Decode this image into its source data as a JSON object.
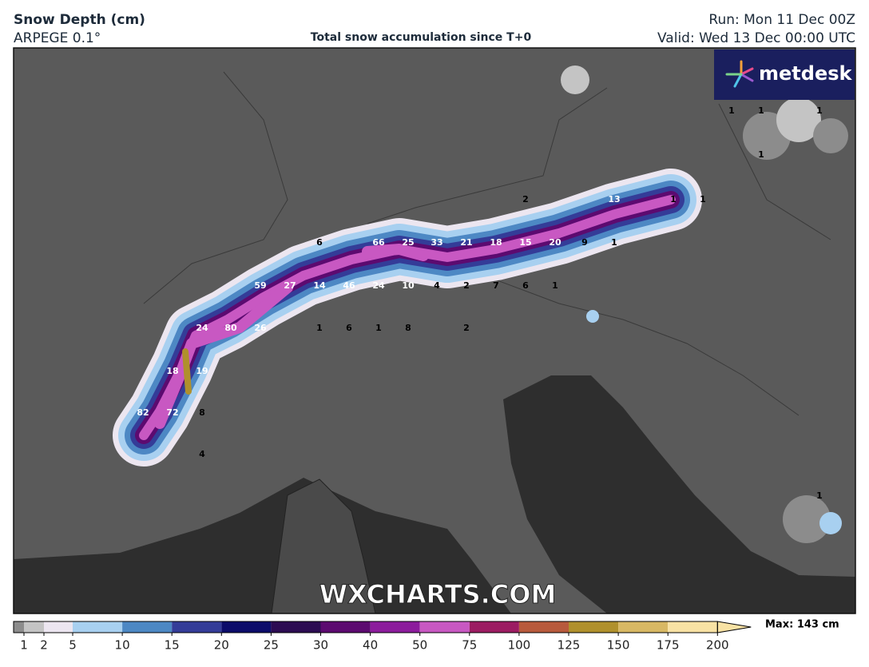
{
  "header": {
    "title": "Snow Depth (cm)",
    "model": "ARPEGE 0.1°",
    "subtitle": "Total snow accumulation since T+0",
    "run": "Run: Mon 11 Dec 00Z",
    "valid": "Valid: Wed 13 Dec 00:00 UTC"
  },
  "logo": "metdesk",
  "watermark": "WXCHARTS.COM",
  "legend": {
    "ticks": [
      1,
      2,
      5,
      10,
      15,
      20,
      25,
      30,
      40,
      50,
      75,
      100,
      125,
      150,
      175,
      200
    ],
    "below_color": "#8c8c8c",
    "colors": [
      "#c4c4c4",
      "#ece6f0",
      "#a8d0f0",
      "#4d88c4",
      "#343c98",
      "#0c0c6a",
      "#2c0c52",
      "#5c0a70",
      "#8c1c9c",
      "#c858c2",
      "#9c1c62",
      "#b85a3c",
      "#b0902c",
      "#d8b864",
      "#f8e2a4"
    ],
    "max_label": "Max: 143 cm"
  },
  "map_labels": [
    2,
    13,
    1,
    1,
    1,
    1,
    1,
    1,
    6,
    66,
    25,
    33,
    21,
    18,
    15,
    20,
    9,
    1,
    59,
    27,
    14,
    46,
    24,
    10,
    4,
    2,
    7,
    6,
    1,
    24,
    80,
    26,
    1,
    6,
    1,
    8,
    2,
    18,
    19,
    82,
    72,
    8,
    4,
    1
  ]
}
